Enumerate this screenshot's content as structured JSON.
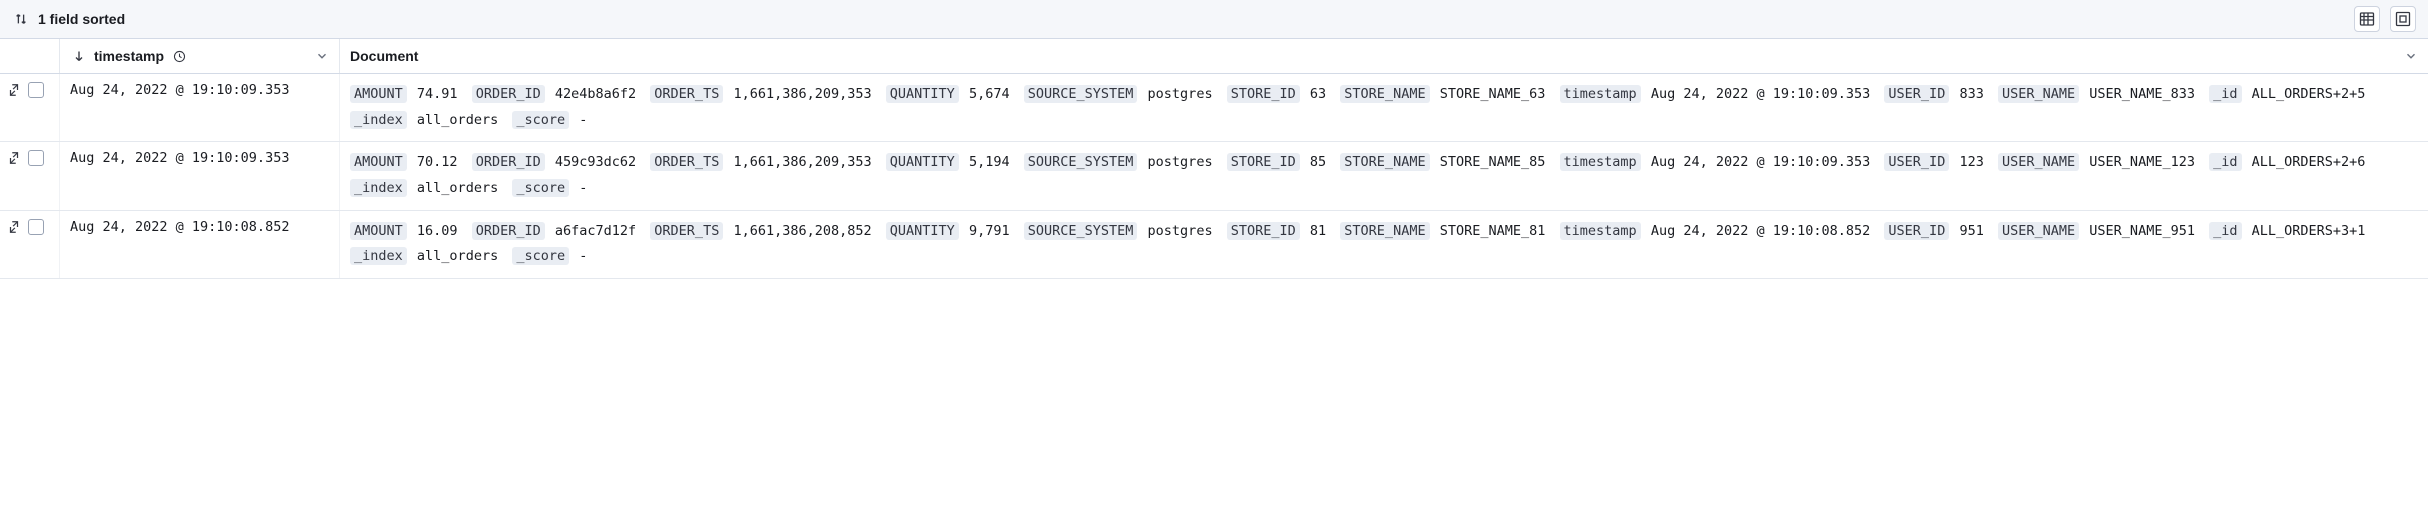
{
  "toolbar": {
    "sort_label": "1 field sorted"
  },
  "columns": {
    "timestamp_label": "timestamp",
    "document_label": "Document"
  },
  "rows": [
    {
      "timestamp": "Aug 24, 2022 @ 19:10:09.353",
      "fields": [
        {
          "key": "AMOUNT",
          "val": "74.91"
        },
        {
          "key": "ORDER_ID",
          "val": "42e4b8a6f2"
        },
        {
          "key": "ORDER_TS",
          "val": "1,661,386,209,353"
        },
        {
          "key": "QUANTITY",
          "val": "5,674"
        },
        {
          "key": "SOURCE_SYSTEM",
          "val": "postgres"
        },
        {
          "key": "STORE_ID",
          "val": "63"
        },
        {
          "key": "STORE_NAME",
          "val": "STORE_NAME_63"
        },
        {
          "key": "timestamp",
          "val": "Aug 24, 2022 @ 19:10:09.353"
        },
        {
          "key": "USER_ID",
          "val": "833"
        },
        {
          "key": "USER_NAME",
          "val": "USER_NAME_833"
        },
        {
          "key": "_id",
          "val": "ALL_ORDERS+2+5"
        },
        {
          "key": "_index",
          "val": "all_orders"
        },
        {
          "key": "_score",
          "val": "-"
        }
      ]
    },
    {
      "timestamp": "Aug 24, 2022 @ 19:10:09.353",
      "fields": [
        {
          "key": "AMOUNT",
          "val": "70.12"
        },
        {
          "key": "ORDER_ID",
          "val": "459c93dc62"
        },
        {
          "key": "ORDER_TS",
          "val": "1,661,386,209,353"
        },
        {
          "key": "QUANTITY",
          "val": "5,194"
        },
        {
          "key": "SOURCE_SYSTEM",
          "val": "postgres"
        },
        {
          "key": "STORE_ID",
          "val": "85"
        },
        {
          "key": "STORE_NAME",
          "val": "STORE_NAME_85"
        },
        {
          "key": "timestamp",
          "val": "Aug 24, 2022 @ 19:10:09.353"
        },
        {
          "key": "USER_ID",
          "val": "123"
        },
        {
          "key": "USER_NAME",
          "val": "USER_NAME_123"
        },
        {
          "key": "_id",
          "val": "ALL_ORDERS+2+6"
        },
        {
          "key": "_index",
          "val": "all_orders"
        },
        {
          "key": "_score",
          "val": "-"
        }
      ]
    },
    {
      "timestamp": "Aug 24, 2022 @ 19:10:08.852",
      "fields": [
        {
          "key": "AMOUNT",
          "val": "16.09"
        },
        {
          "key": "ORDER_ID",
          "val": "a6fac7d12f"
        },
        {
          "key": "ORDER_TS",
          "val": "1,661,386,208,852"
        },
        {
          "key": "QUANTITY",
          "val": "9,791"
        },
        {
          "key": "SOURCE_SYSTEM",
          "val": "postgres"
        },
        {
          "key": "STORE_ID",
          "val": "81"
        },
        {
          "key": "STORE_NAME",
          "val": "STORE_NAME_81"
        },
        {
          "key": "timestamp",
          "val": "Aug 24, 2022 @ 19:10:08.852"
        },
        {
          "key": "USER_ID",
          "val": "951"
        },
        {
          "key": "USER_NAME",
          "val": "USER_NAME_951"
        },
        {
          "key": "_id",
          "val": "ALL_ORDERS+3+1"
        },
        {
          "key": "_index",
          "val": "all_orders"
        },
        {
          "key": "_score",
          "val": "-"
        }
      ]
    }
  ],
  "colors": {
    "key_bg": "#e9edf3",
    "border": "#d3dae6",
    "text": "#1a1c21"
  }
}
